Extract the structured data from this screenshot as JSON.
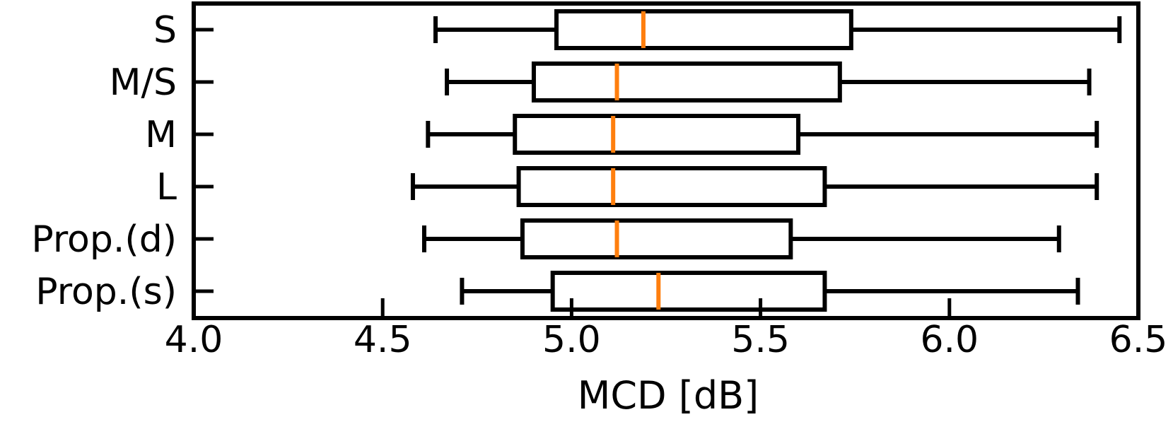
{
  "chart_data": {
    "type": "boxplot",
    "orientation": "horizontal",
    "xlabel": "MCD [dB]",
    "ylabel": "",
    "title": "",
    "xlim": [
      4.0,
      6.5
    ],
    "xticks": [
      "4.0",
      "4.5",
      "5.0",
      "5.5",
      "6.0",
      "6.5"
    ],
    "grid": false,
    "median_color": "#ff7f0e",
    "box_color": "#000000",
    "categories": [
      "S",
      "M/S",
      "M",
      "L",
      "Prop.(d)",
      "Prop.(s)"
    ],
    "boxes": [
      {
        "label": "S",
        "whislo": 4.64,
        "q1": 4.96,
        "med": 5.19,
        "q3": 5.74,
        "whishi": 6.45
      },
      {
        "label": "M/S",
        "whislo": 4.67,
        "q1": 4.9,
        "med": 5.12,
        "q3": 5.71,
        "whishi": 6.37
      },
      {
        "label": "M",
        "whislo": 4.62,
        "q1": 4.85,
        "med": 5.11,
        "q3": 5.6,
        "whishi": 6.39
      },
      {
        "label": "L",
        "whislo": 4.58,
        "q1": 4.86,
        "med": 5.11,
        "q3": 5.67,
        "whishi": 6.39
      },
      {
        "label": "Prop.(d)",
        "whislo": 4.61,
        "q1": 4.87,
        "med": 5.12,
        "q3": 5.58,
        "whishi": 6.29
      },
      {
        "label": "Prop.(s)",
        "whislo": 4.71,
        "q1": 4.95,
        "med": 5.23,
        "q3": 5.67,
        "whishi": 6.34
      }
    ]
  }
}
